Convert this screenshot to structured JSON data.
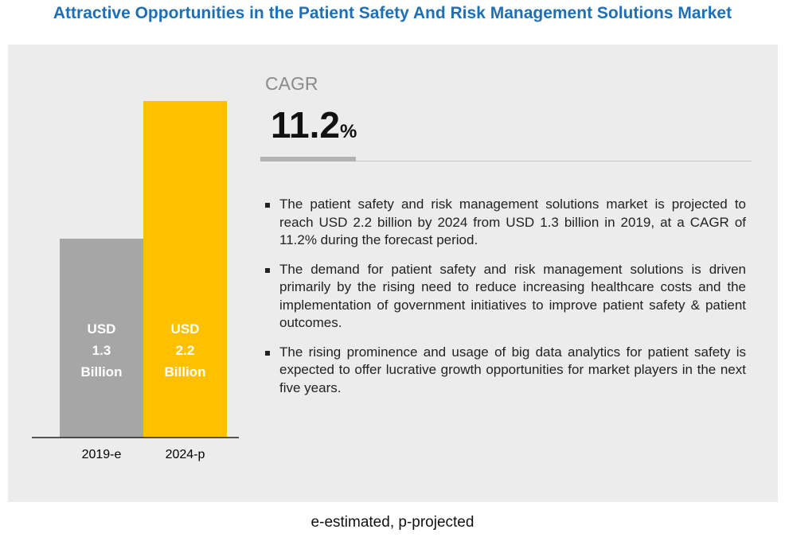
{
  "title": "Attractive Opportunities in the Patient Safety And Risk Management Solutions Market",
  "chart_data": {
    "type": "bar",
    "categories": [
      "2019-e",
      "2024-p"
    ],
    "values": [
      1.3,
      2.2
    ],
    "bar_labels": [
      [
        "USD",
        "1.3",
        "Billion"
      ],
      [
        "USD",
        "2.2",
        "Billion"
      ]
    ],
    "colors": [
      "#a6a6a6",
      "#ffc000"
    ],
    "ylim": [
      0,
      2.2
    ],
    "grid": false
  },
  "cagr": {
    "label": "CAGR",
    "value": "11.2",
    "unit": "%"
  },
  "bullets": [
    "The patient safety and risk management solutions market is projected to reach USD 2.2 billion by 2024 from USD 1.3 billion in 2019, at a CAGR of 11.2% during the forecast period.",
    "The demand for patient safety and risk management solutions is driven primarily by the rising need to reduce increasing healthcare costs and the implementation of government initiatives to improve patient safety & patient outcomes.",
    "The rising prominence and usage of big data analytics for patient safety is expected to offer lucrative growth opportunities for market players in the next five years."
  ],
  "footnote": "e-estimated, p-projected"
}
